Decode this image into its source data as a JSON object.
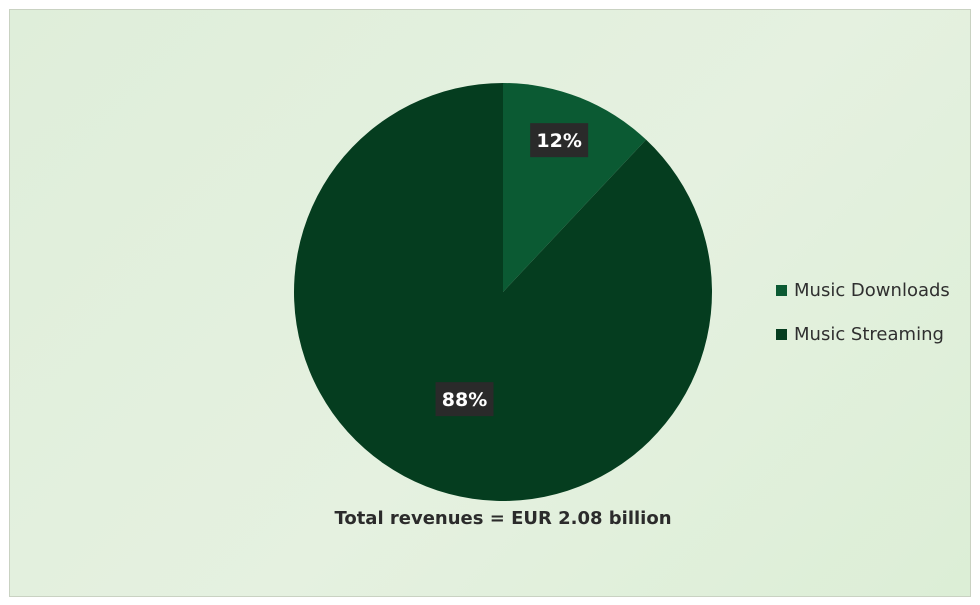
{
  "chart_data": {
    "type": "pie",
    "title": "",
    "caption": "Total revenues = EUR 2.08 billion",
    "categories": [
      "Music Downloads",
      "Music Streaming"
    ],
    "values": [
      12,
      88
    ],
    "value_labels": [
      "12%",
      "88%"
    ],
    "unit": "%",
    "legend_position": "right",
    "colors": [
      "#0b5a33",
      "#053d1f"
    ],
    "label_box_color": "#2a2a2a",
    "background_color": "#e2efdc"
  }
}
